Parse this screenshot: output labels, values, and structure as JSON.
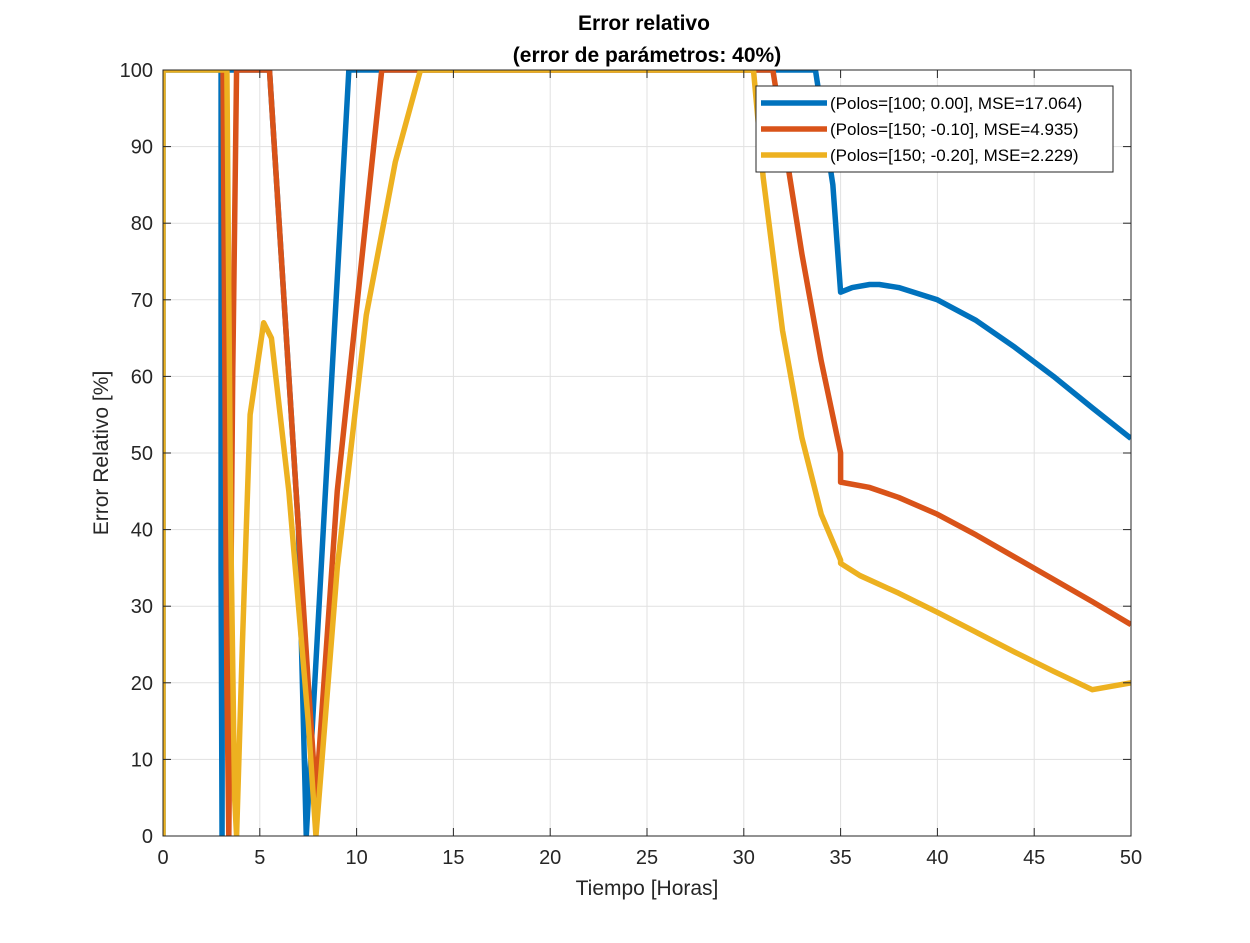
{
  "chart_data": {
    "type": "line",
    "title": "Error relativo",
    "subtitle": "(error de parámetros: 40%)",
    "xlabel": "Tiempo [Horas]",
    "ylabel": "Error Relativo [%]",
    "xlim": [
      0,
      50
    ],
    "ylim": [
      0,
      100
    ],
    "xticks": [
      "0",
      "5",
      "10",
      "15",
      "20",
      "25",
      "30",
      "35",
      "40",
      "45",
      "50"
    ],
    "yticks": [
      "0",
      "10",
      "20",
      "30",
      "40",
      "50",
      "60",
      "70",
      "80",
      "90",
      "100"
    ],
    "grid": true,
    "legend_position": "top-right",
    "series": [
      {
        "name": "(Polos=[100; 0.00], MSE=17.064)",
        "color": "#0072BD",
        "x": [
          0,
          0,
          0,
          0,
          3.0,
          3.0,
          3.05,
          3.05,
          3.1,
          3.1,
          5.5,
          5.5,
          7.0,
          7.4,
          8.5,
          9.6,
          9.6,
          33.7,
          33.7,
          34.6,
          35.0,
          35.0,
          35.6,
          36.5,
          37.0,
          38.0,
          40.0,
          42.0,
          44.0,
          46.0,
          48.0,
          50.0
        ],
        "y": [
          100,
          0,
          0,
          100,
          100,
          35,
          0,
          0,
          100,
          100,
          100,
          100,
          40,
          0,
          50,
          100,
          100,
          100,
          100,
          85,
          71,
          71,
          71.6,
          72,
          72,
          71.6,
          70,
          67.3,
          63.8,
          60,
          55.9,
          51.9
        ]
      },
      {
        "name": "(Polos=[150; -0.10], MSE=4.935)",
        "color": "#D95319",
        "x": [
          3.1,
          3.1,
          3.2,
          3.3,
          3.4,
          3.6,
          3.8,
          4.0,
          4.0,
          5.5,
          5.5,
          6.5,
          7.5,
          7.9,
          9.0,
          11.3,
          11.3,
          31.5,
          32.0,
          33.0,
          34.0,
          35.0,
          35.0,
          36.5,
          38.0,
          40.0,
          42.0,
          44.0,
          46.0,
          48.0,
          50.0
        ],
        "y": [
          100,
          100,
          60,
          20,
          0,
          60,
          100,
          100,
          100,
          100,
          100,
          60,
          20,
          5,
          45,
          100,
          100,
          100,
          92,
          76,
          62,
          50,
          46.2,
          45.5,
          44.2,
          42,
          39.3,
          36.4,
          33.5,
          30.6,
          27.6
        ]
      },
      {
        "name": "(Polos=[150; -0.20], MSE=2.229)",
        "color": "#EDB120",
        "x": [
          0,
          0,
          0,
          0,
          3.2,
          3.25,
          3.3,
          3.3,
          3.5,
          3.7,
          3.8,
          4.1,
          4.5,
          5.2,
          5.6,
          6.5,
          7.5,
          7.9,
          9.0,
          10.5,
          12.0,
          13.3,
          13.3,
          30.5,
          31.0,
          32.0,
          33.0,
          34.0,
          35.0,
          35.0,
          36.0,
          38.0,
          40.0,
          42.0,
          44.0,
          46.0,
          48.0,
          50.0
        ],
        "y": [
          100,
          0,
          0,
          100,
          100,
          100,
          100,
          100,
          40,
          5,
          0,
          25,
          55,
          67,
          65,
          45,
          15,
          0,
          35,
          68,
          88,
          100,
          100,
          100,
          86,
          66,
          52,
          42,
          36,
          35.6,
          34,
          31.7,
          29.2,
          26.6,
          24,
          21.5,
          19.1,
          20
        ]
      }
    ]
  }
}
